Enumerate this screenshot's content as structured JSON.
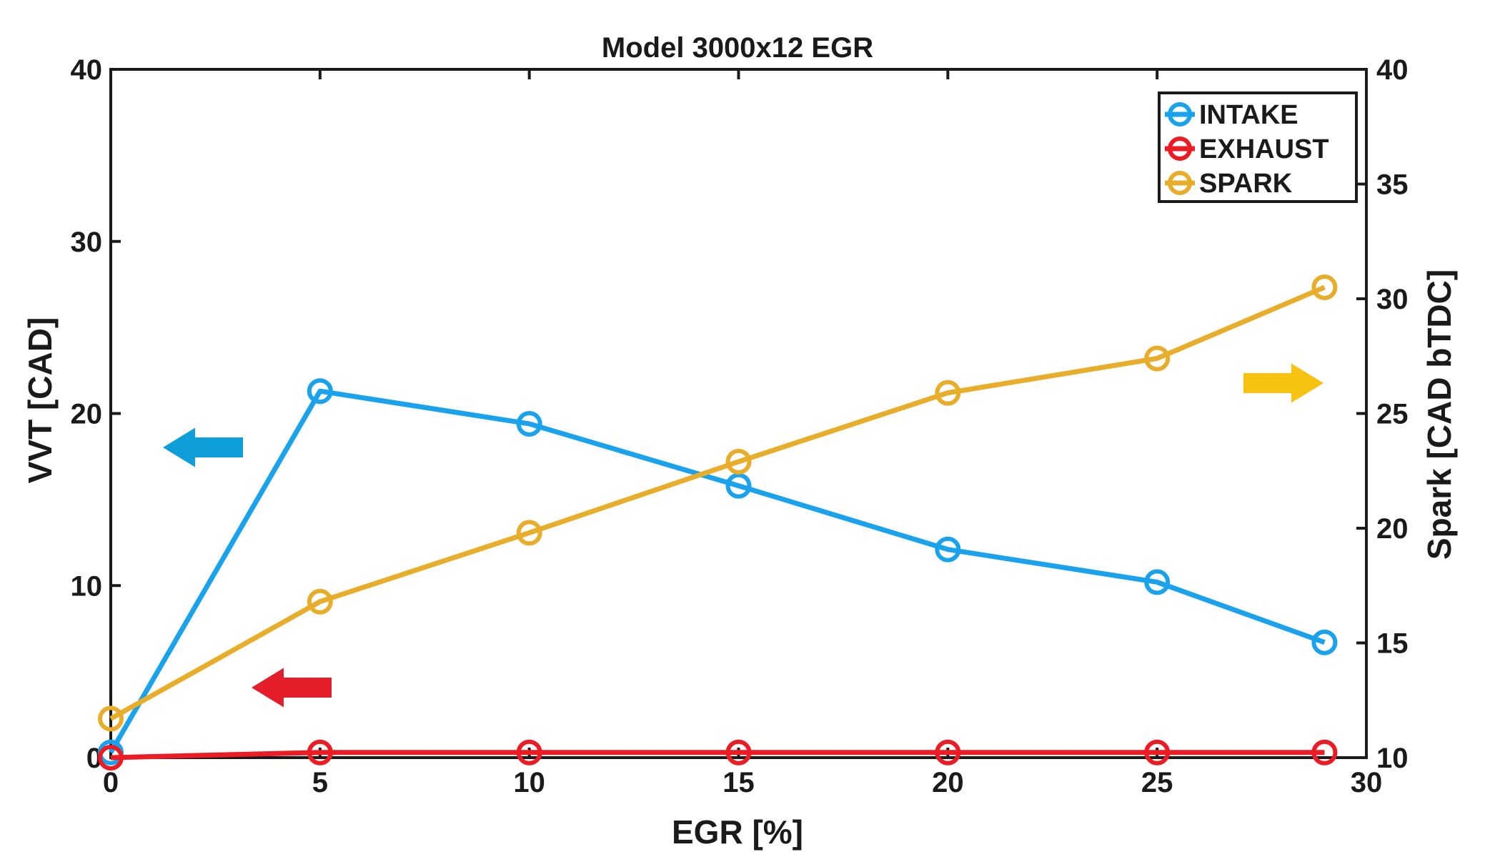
{
  "chart_data": {
    "type": "line",
    "title": "Model 3000x12 EGR",
    "xlabel": "EGR [%]",
    "ylabel_left": "VVT [CAD]",
    "ylabel_right": "Spark [CAD bTDC]",
    "xlim": [
      0,
      30
    ],
    "ylim_left": [
      0,
      40
    ],
    "ylim_right": [
      10,
      40
    ],
    "x_ticks": [
      0,
      5,
      10,
      15,
      20,
      25,
      30
    ],
    "y_left_ticks": [
      0,
      10,
      20,
      30,
      40
    ],
    "y_right_ticks": [
      10,
      15,
      20,
      25,
      30,
      35,
      40
    ],
    "grid": false,
    "legend_position": "top-right",
    "series": [
      {
        "name": "INTAKE",
        "axis": "left",
        "color": "#1aa3ec",
        "x": [
          0,
          5,
          10,
          15,
          20,
          25,
          29
        ],
        "values": [
          0.3,
          21.3,
          19.4,
          15.8,
          12.1,
          10.2,
          6.7
        ]
      },
      {
        "name": "EXHAUST",
        "axis": "left",
        "color": "#ec1c24",
        "x": [
          0,
          5,
          10,
          15,
          20,
          25,
          29
        ],
        "values": [
          0.0,
          0.3,
          0.3,
          0.3,
          0.3,
          0.3,
          0.3
        ]
      },
      {
        "name": "SPARK",
        "axis": "right",
        "color": "#e8ae2b",
        "x": [
          0,
          5,
          10,
          15,
          20,
          25,
          29
        ],
        "values": [
          11.7,
          16.8,
          19.8,
          22.9,
          25.9,
          27.4,
          30.5
        ]
      }
    ],
    "annotations": [
      {
        "type": "arrow",
        "direction": "left",
        "color": "#0e9ed9",
        "refers_to": "INTAKE",
        "axis": "left"
      },
      {
        "type": "arrow",
        "direction": "left",
        "color": "#e41e2b",
        "refers_to": "EXHAUST",
        "axis": "left"
      },
      {
        "type": "arrow",
        "direction": "right",
        "color": "#f8c212",
        "refers_to": "SPARK",
        "axis": "right"
      }
    ]
  }
}
